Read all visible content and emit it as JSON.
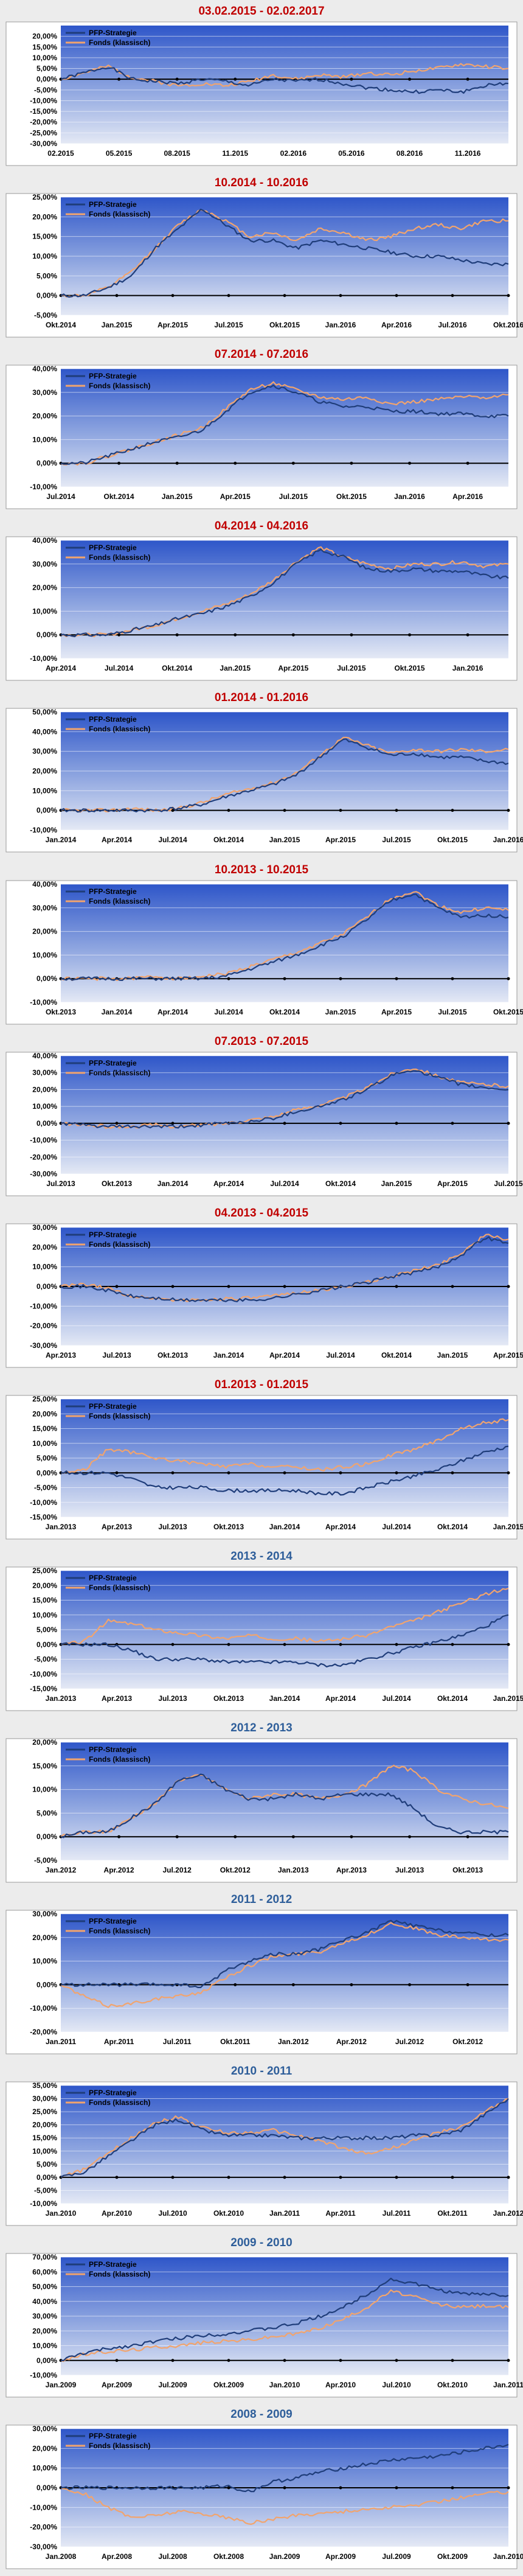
{
  "legend_labels": {
    "s1": "PFP-Strategie",
    "s2": "Fonds (klassisch)"
  },
  "colors": {
    "strategie": "#1f3d7a",
    "fonds": "#f2a46d",
    "title_red": "#c00000",
    "title_blue": "#2e5e9a"
  },
  "chart_data": [
    {
      "type": "line",
      "title": "03.02.2015 - 02.02.2017",
      "ylim": [
        -30,
        25
      ],
      "yticks": [
        "-30,00%",
        "-25,00%",
        "-20,00%",
        "-15,00%",
        "-10,00%",
        "-5,00%",
        "0,00%",
        "5,00%",
        "10,00%",
        "15,00%",
        "20,00%"
      ],
      "xticks": [
        "02.2015",
        "05.2015",
        "08.2015",
        "11.2015",
        "02.2016",
        "05.2016",
        "08.2016",
        "11.2016"
      ],
      "series": [
        {
          "name": "PFP-Strategie",
          "values": [
            0,
            3,
            6,
            0,
            -1,
            -2,
            0,
            -1,
            -3,
            0,
            -1,
            0,
            -2,
            -4,
            -5,
            -6,
            -5,
            -6,
            -3,
            -2
          ]
        },
        {
          "name": "Fonds (klassisch)",
          "values": [
            0,
            3,
            6,
            1,
            -1,
            -3,
            -2,
            -3,
            -1,
            2,
            0,
            2,
            1,
            3,
            2,
            4,
            5,
            7,
            6,
            5
          ]
        }
      ]
    },
    {
      "type": "line",
      "title": "10.2014 - 10.2016",
      "ylim": [
        -5,
        25
      ],
      "yticks": [
        "-5,00%",
        "0,00%",
        "5,00%",
        "10,00%",
        "15,00%",
        "20,00%",
        "25,00%"
      ],
      "xticks": [
        "Okt.2014",
        "Jan.2015",
        "Apr.2015",
        "Jul.2015",
        "Okt.2015",
        "Jan.2016",
        "Apr.2016",
        "Jul.2016",
        "Okt.2016"
      ],
      "series": [
        {
          "name": "PFP-Strategie",
          "values": [
            0,
            0,
            2,
            5,
            12,
            17,
            22,
            18,
            14,
            14,
            12,
            14,
            13,
            12,
            11,
            10,
            10,
            9,
            8,
            8
          ]
        },
        {
          "name": "Fonds (klassisch)",
          "values": [
            0,
            0,
            2,
            6,
            12,
            18,
            22,
            19,
            15,
            16,
            14,
            17,
            16,
            14,
            15,
            17,
            18,
            17,
            19,
            19
          ]
        }
      ]
    },
    {
      "type": "line",
      "title": "07.2014 - 07.2016",
      "ylim": [
        -10,
        40
      ],
      "yticks": [
        "-10,00%",
        "0,00%",
        "10,00%",
        "20,00%",
        "30,00%",
        "40,00%"
      ],
      "xticks": [
        "Jul.2014",
        "Okt.2014",
        "Jan.2015",
        "Apr.2015",
        "Jul.2015",
        "Okt.2015",
        "Jan.2016",
        "Apr.2016"
      ],
      "series": [
        {
          "name": "PFP-Strategie",
          "values": [
            0,
            0,
            3,
            6,
            9,
            11,
            14,
            22,
            30,
            33,
            30,
            26,
            24,
            24,
            22,
            22,
            21,
            21,
            20,
            20
          ]
        },
        {
          "name": "Fonds (klassisch)",
          "values": [
            0,
            0,
            3,
            6,
            9,
            12,
            15,
            23,
            31,
            34,
            31,
            28,
            27,
            28,
            25,
            26,
            27,
            28,
            28,
            29
          ]
        }
      ]
    },
    {
      "type": "line",
      "title": "04.2014 - 04.2016",
      "ylim": [
        -10,
        40
      ],
      "yticks": [
        "-10,00%",
        "0,00%",
        "10,00%",
        "20,00%",
        "30,00%",
        "40,00%"
      ],
      "xticks": [
        "Apr.2014",
        "Jul.2014",
        "Okt.2014",
        "Jan.2015",
        "Apr.2015",
        "Jul.2015",
        "Okt.2015",
        "Jan.2016"
      ],
      "series": [
        {
          "name": "PFP-Strategie",
          "values": [
            0,
            0,
            0,
            2,
            4,
            7,
            9,
            12,
            16,
            22,
            30,
            36,
            33,
            28,
            27,
            28,
            27,
            27,
            25,
            24
          ]
        },
        {
          "name": "Fonds (klassisch)",
          "values": [
            0,
            0,
            0,
            2,
            4,
            7,
            10,
            13,
            17,
            23,
            31,
            37,
            33,
            30,
            28,
            30,
            30,
            31,
            29,
            30
          ]
        }
      ]
    },
    {
      "type": "line",
      "title": "01.2014 - 01.2016",
      "ylim": [
        -10,
        50
      ],
      "yticks": [
        "-10,00%",
        "0,00%",
        "10,00%",
        "20,00%",
        "30,00%",
        "40,00%",
        "50,00%"
      ],
      "xticks": [
        "Jan.2014",
        "Apr.2014",
        "Jul.2014",
        "Okt.2014",
        "Jan.2015",
        "Apr.2015",
        "Jul.2015",
        "Okt.2015",
        "Jan.2016"
      ],
      "series": [
        {
          "name": "PFP-Strategie",
          "values": [
            0,
            0,
            0,
            0,
            0,
            1,
            3,
            7,
            10,
            13,
            18,
            27,
            36,
            32,
            28,
            29,
            27,
            27,
            25,
            24
          ]
        },
        {
          "name": "Fonds (klassisch)",
          "values": [
            0,
            0,
            0,
            1,
            0,
            1,
            4,
            8,
            11,
            14,
            19,
            28,
            37,
            33,
            29,
            31,
            30,
            31,
            30,
            31
          ]
        }
      ]
    },
    {
      "type": "line",
      "title": "10.2013 - 10.2015",
      "ylim": [
        -10,
        40
      ],
      "yticks": [
        "-10,00%",
        "0,00%",
        "10,00%",
        "20,00%",
        "30,00%",
        "40,00%"
      ],
      "xticks": [
        "Okt.2013",
        "Jan.2014",
        "Apr.2014",
        "Jul.2014",
        "Okt.2014",
        "Jan.2015",
        "Apr.2015",
        "Jul.2015",
        "Okt.2015"
      ],
      "series": [
        {
          "name": "PFP-Strategie",
          "values": [
            0,
            0,
            0,
            0,
            0,
            0,
            0,
            1,
            4,
            7,
            10,
            14,
            18,
            25,
            33,
            36,
            30,
            26,
            27,
            26
          ]
        },
        {
          "name": "Fonds (klassisch)",
          "values": [
            0,
            0,
            0,
            0,
            1,
            0,
            1,
            2,
            5,
            8,
            11,
            15,
            19,
            26,
            34,
            37,
            31,
            28,
            30,
            29
          ]
        }
      ]
    },
    {
      "type": "line",
      "title": "07.2013 - 07.2015",
      "ylim": [
        -30,
        40
      ],
      "yticks": [
        "-30,00%",
        "-20,00%",
        "-10,00%",
        "0,00%",
        "10,00%",
        "20,00%",
        "30,00%",
        "40,00%"
      ],
      "xticks": [
        "Jul.2013",
        "Okt.2013",
        "Jan.2014",
        "Apr.2014",
        "Jul.2014",
        "Okt.2014",
        "Jan.2015",
        "Apr.2015",
        "Jul.2015"
      ],
      "series": [
        {
          "name": "PFP-Strategie",
          "values": [
            0,
            -1,
            -2,
            -2,
            -2,
            -2,
            -1,
            0,
            1,
            3,
            7,
            10,
            14,
            20,
            28,
            32,
            27,
            23,
            21,
            20
          ]
        },
        {
          "name": "Fonds (klassisch)",
          "values": [
            0,
            -1,
            -2,
            -2,
            -1,
            -2,
            -1,
            0,
            2,
            4,
            8,
            11,
            15,
            21,
            29,
            33,
            28,
            24,
            23,
            22
          ]
        }
      ]
    },
    {
      "type": "line",
      "title": "04.2013 - 04.2015",
      "ylim": [
        -30,
        30
      ],
      "yticks": [
        "-30,00%",
        "-20,00%",
        "-10,00%",
        "0,00%",
        "10,00%",
        "20,00%",
        "30,00%"
      ],
      "xticks": [
        "Apr.2013",
        "Jul.2013",
        "Okt.2013",
        "Jan.2014",
        "Apr.2014",
        "Jul.2014",
        "Okt.2014",
        "Jan.2015",
        "Apr.2015"
      ],
      "series": [
        {
          "name": "PFP-Strategie",
          "values": [
            0,
            0,
            -2,
            -5,
            -6,
            -7,
            -7,
            -7,
            -7,
            -6,
            -4,
            -2,
            0,
            2,
            5,
            7,
            10,
            16,
            25,
            22
          ]
        },
        {
          "name": "Fonds (klassisch)",
          "values": [
            0,
            1,
            -1,
            -5,
            -6,
            -7,
            -7,
            -6,
            -6,
            -5,
            -3,
            -2,
            0,
            2,
            5,
            8,
            11,
            17,
            26,
            24
          ]
        }
      ]
    },
    {
      "type": "line",
      "title": "01.2013 - 01.2015",
      "ylim": [
        -15,
        25
      ],
      "yticks": [
        "-15,00%",
        "-10,00%",
        "-5,00%",
        "0,00%",
        "5,00%",
        "10,00%",
        "15,00%",
        "20,00%",
        "25,00%"
      ],
      "xticks": [
        "Jan.2013",
        "Apr.2013",
        "Jul.2013",
        "Okt.2013",
        "Jan.2014",
        "Apr.2014",
        "Jul.2014",
        "Okt.2014",
        "Jan.2015"
      ],
      "series": [
        {
          "name": "PFP-Strategie",
          "values": [
            0,
            0,
            0,
            -2,
            -5,
            -5,
            -5,
            -6,
            -6,
            -6,
            -6,
            -7,
            -7,
            -5,
            -3,
            -1,
            1,
            4,
            7,
            9
          ]
        },
        {
          "name": "Fonds (klassisch)",
          "values": [
            0,
            1,
            8,
            7,
            5,
            4,
            3,
            2,
            3,
            2,
            2,
            1,
            2,
            3,
            6,
            8,
            11,
            15,
            17,
            18
          ]
        }
      ]
    },
    {
      "type": "line",
      "title": "2013 - 2014",
      "ylim": [
        -15,
        25
      ],
      "yticks": [
        "-15,00%",
        "-10,00%",
        "-5,00%",
        "0,00%",
        "5,00%",
        "10,00%",
        "15,00%",
        "20,00%",
        "25,00%"
      ],
      "xticks": [
        "Jan.2013",
        "Apr.2013",
        "Jul.2013",
        "Okt.2013",
        "Jan.2014",
        "Apr.2014",
        "Jul.2014",
        "Okt.2014",
        "Jan.2015"
      ],
      "series": [
        {
          "name": "PFP-Strategie",
          "values": [
            0,
            0,
            0,
            -2,
            -5,
            -5,
            -5,
            -6,
            -6,
            -6,
            -6,
            -7,
            -7,
            -5,
            -3,
            -1,
            1,
            3,
            6,
            10
          ]
        },
        {
          "name": "Fonds (klassisch)",
          "values": [
            0,
            1,
            8,
            7,
            5,
            4,
            3,
            2,
            3,
            2,
            2,
            1,
            2,
            3,
            6,
            8,
            11,
            14,
            17,
            19
          ]
        }
      ]
    },
    {
      "type": "line",
      "title": "2012 - 2013",
      "ylim": [
        -5,
        20
      ],
      "yticks": [
        "-5,00%",
        "0,00%",
        "5,00%",
        "10,00%",
        "15,00%",
        "20,00%"
      ],
      "xticks": [
        "Jan.2012",
        "Apr.2012",
        "Jul.2012",
        "Okt.2012",
        "Jan.2013",
        "Apr.2013",
        "Jul.2013",
        "Okt.2013"
      ],
      "series": [
        {
          "name": "PFP-Strategie",
          "values": [
            0,
            1,
            1,
            4,
            7,
            12,
            13,
            10,
            8,
            8,
            9,
            8,
            9,
            9,
            9,
            6,
            2,
            1,
            1,
            1
          ]
        },
        {
          "name": "Fonds (klassisch)",
          "values": [
            0,
            1,
            1,
            4,
            7,
            12,
            13,
            10,
            8,
            9,
            9,
            8,
            9,
            11,
            15,
            14,
            10,
            8,
            7,
            6
          ]
        }
      ]
    },
    {
      "type": "line",
      "title": "2011 - 2012",
      "ylim": [
        -20,
        30
      ],
      "yticks": [
        "-20,00%",
        "-10,00%",
        "0,00%",
        "10,00%",
        "20,00%",
        "30,00%"
      ],
      "xticks": [
        "Jan.2011",
        "Apr.2011",
        "Jul.2011",
        "Okt.2011",
        "Jan.2012",
        "Apr.2012",
        "Jul.2012",
        "Okt.2012"
      ],
      "series": [
        {
          "name": "PFP-Strategie",
          "values": [
            0,
            0,
            0,
            0,
            0,
            0,
            -1,
            6,
            10,
            13,
            13,
            15,
            19,
            22,
            27,
            25,
            23,
            22,
            21,
            21
          ]
        },
        {
          "name": "Fonds (klassisch)",
          "values": [
            0,
            -5,
            -9,
            -8,
            -6,
            -5,
            -3,
            3,
            8,
            12,
            13,
            14,
            18,
            21,
            26,
            24,
            21,
            20,
            19,
            19
          ]
        }
      ]
    },
    {
      "type": "line",
      "title": "2010 - 2011",
      "ylim": [
        -10,
        35
      ],
      "yticks": [
        "-10,00%",
        "-5,00%",
        "0,00%",
        "5,00%",
        "10,00%",
        "15,00%",
        "20,00%",
        "25,00%",
        "30,00%",
        "35,00%"
      ],
      "xticks": [
        "Jan.2010",
        "Apr.2010",
        "Jul.2010",
        "Okt.2010",
        "Jan.2011",
        "Apr.2011",
        "Jul.2011",
        "Okt.2011",
        "Jan.2012"
      ],
      "series": [
        {
          "name": "PFP-Strategie",
          "values": [
            0,
            2,
            8,
            14,
            20,
            22,
            18,
            16,
            16,
            16,
            15,
            15,
            15,
            15,
            15,
            16,
            16,
            18,
            24,
            30
          ]
        },
        {
          "name": "Fonds (klassisch)",
          "values": [
            0,
            3,
            9,
            15,
            21,
            23,
            19,
            17,
            17,
            18,
            16,
            14,
            11,
            9,
            11,
            14,
            17,
            19,
            25,
            30
          ]
        }
      ]
    },
    {
      "type": "line",
      "title": "2009 - 2010",
      "ylim": [
        -10,
        70
      ],
      "yticks": [
        "-10,00%",
        "0,00%",
        "10,00%",
        "20,00%",
        "30,00%",
        "40,00%",
        "50,00%",
        "60,00%",
        "70,00%"
      ],
      "xticks": [
        "Jan.2009",
        "Apr.2009",
        "Jul.2009",
        "Okt.2009",
        "Jan.2010",
        "Apr.2010",
        "Jul.2010",
        "Okt.2010",
        "Jan.2011"
      ],
      "series": [
        {
          "name": "PFP-Strategie",
          "values": [
            0,
            5,
            8,
            10,
            13,
            15,
            17,
            18,
            20,
            22,
            25,
            30,
            36,
            45,
            55,
            52,
            48,
            45,
            45,
            44
          ]
        },
        {
          "name": "Fonds (klassisch)",
          "values": [
            0,
            4,
            6,
            7,
            9,
            10,
            12,
            13,
            14,
            16,
            18,
            22,
            28,
            36,
            47,
            43,
            38,
            36,
            37,
            36
          ]
        }
      ]
    },
    {
      "type": "line",
      "title": "2008 - 2009",
      "ylim": [
        -30,
        30
      ],
      "yticks": [
        "-30,00%",
        "-20,00%",
        "-10,00%",
        "0,00%",
        "10,00%",
        "20,00%",
        "30,00%"
      ],
      "xticks": [
        "Jan.2008",
        "Apr.2008",
        "Jul.2008",
        "Okt.2008",
        "Jan.2009",
        "Apr.2009",
        "Jul.2009",
        "Okt.2009",
        "Jan.2010"
      ],
      "series": [
        {
          "name": "PFP-Strategie",
          "values": [
            0,
            0,
            0,
            0,
            0,
            0,
            0,
            1,
            -2,
            3,
            5,
            8,
            10,
            12,
            14,
            15,
            16,
            18,
            20,
            22
          ]
        },
        {
          "name": "Fonds (klassisch)",
          "values": [
            0,
            -3,
            -10,
            -15,
            -14,
            -12,
            -13,
            -15,
            -18,
            -16,
            -14,
            -13,
            -12,
            -11,
            -10,
            -9,
            -7,
            -5,
            -3,
            -2
          ]
        }
      ]
    }
  ]
}
